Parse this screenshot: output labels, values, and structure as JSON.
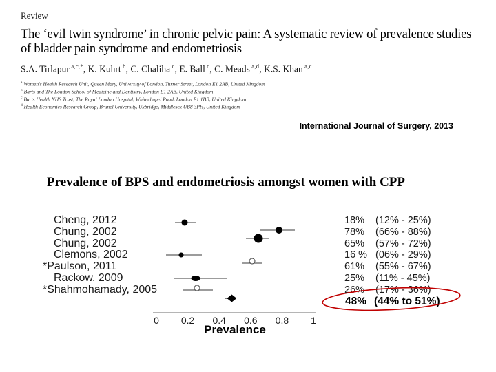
{
  "paper": {
    "section_label": "Review",
    "title": "The ‘evil twin syndrome’ in chronic pelvic pain: A systematic review of prevalence studies of bladder pain syndrome and endometriosis",
    "authors": [
      {
        "name": "S.A. Tirlapur",
        "sup": "a,c,*"
      },
      {
        "name": "K. Kuhrt",
        "sup": "b"
      },
      {
        "name": "C. Chaliha",
        "sup": "c"
      },
      {
        "name": "E. Ball",
        "sup": "c"
      },
      {
        "name": "C. Meads",
        "sup": "a,d"
      },
      {
        "name": "K.S. Khan",
        "sup": "a,c"
      }
    ],
    "affiliations": [
      {
        "sup": "a",
        "text": "Women's Health Research Unit, Queen Mary, University of London, Turner Street, London E1 2AB, United Kingdom"
      },
      {
        "sup": "b",
        "text": "Barts and The London School of Medicine and Dentistry, London E1 2AB, United Kingdom"
      },
      {
        "sup": "c",
        "text": "Barts Health NHS Trust, The Royal London Hospital, Whitechapel Road, London E1 1BB, United Kingdom"
      },
      {
        "sup": "d",
        "text": "Health Economics Research Group, Brunel University, Uxbridge, Middlesex UB8 3PH, United Kingdom"
      }
    ],
    "citation": "International Journal of Surgery, 2013"
  },
  "chart_data": {
    "type": "forest",
    "title": "Prevalence of BPS and endometriosis amongst women with CPP",
    "xlabel": "Prevalence",
    "xlim": [
      0,
      1
    ],
    "x_ticks": [
      0,
      0.2,
      0.4,
      0.6,
      0.8,
      1
    ],
    "x_tick_labels": [
      "0",
      "0.2",
      "0.4",
      "0.6",
      "0.8",
      "1"
    ],
    "grid": false,
    "legend": false,
    "studies": [
      {
        "label": "Cheng, 2012",
        "est": 0.18,
        "lo": 0.12,
        "hi": 0.25,
        "marker": "circle-filled",
        "size": 9,
        "value_label": "18%",
        "ci_label": "(12% - 25%)"
      },
      {
        "label": "Chung, 2002",
        "est": 0.78,
        "lo": 0.66,
        "hi": 0.88,
        "marker": "circle-filled",
        "size": 10,
        "value_label": "78%",
        "ci_label": "(66% - 88%)"
      },
      {
        "label": "Chung, 2002",
        "est": 0.65,
        "lo": 0.57,
        "hi": 0.72,
        "marker": "circle-filled",
        "size": 13,
        "value_label": "65%",
        "ci_label": "(57% - 72%)"
      },
      {
        "label": "Clemons, 2002",
        "est": 0.16,
        "lo": 0.06,
        "hi": 0.29,
        "marker": "circle-filled",
        "size": 7,
        "value_label": "16 %",
        "ci_label": "(06% - 29%)"
      },
      {
        "label": "*Paulson, 2011",
        "est": 0.61,
        "lo": 0.55,
        "hi": 0.67,
        "marker": "circle-open",
        "size": 7,
        "value_label": "61%",
        "ci_label": "(55% - 67%)"
      },
      {
        "label": "Rackow, 2009",
        "est": 0.25,
        "lo": 0.11,
        "hi": 0.45,
        "marker": "ellipse-filled",
        "size": 13,
        "value_label": "25%",
        "ci_label": "(11% - 45%)"
      },
      {
        "label": "*Shahmohamady, 2005",
        "est": 0.26,
        "lo": 0.17,
        "hi": 0.36,
        "marker": "circle-open",
        "size": 7,
        "value_label": "26%",
        "ci_label": "(17% - 36%)"
      }
    ],
    "summary": {
      "est": 0.48,
      "lo": 0.44,
      "hi": 0.51,
      "marker": "diamond-filled",
      "value_label": "48%",
      "ci_label": "(44% to 51%)",
      "highlighted": true
    },
    "colors": {
      "marker": "#000000",
      "ci_line": "#9c9c9c",
      "axis": "#b5b5b5",
      "highlight_ellipse": "#c00000"
    }
  }
}
